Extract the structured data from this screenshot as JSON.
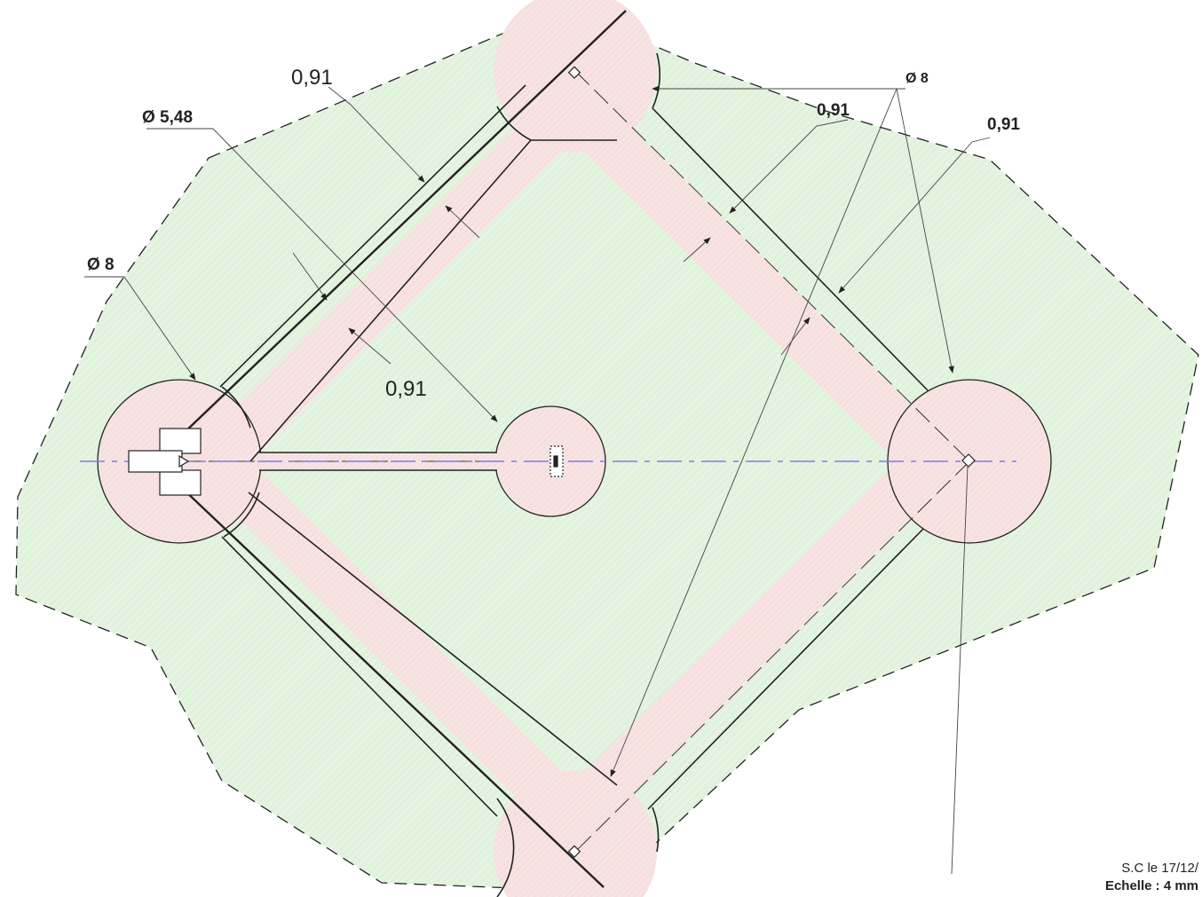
{
  "colors": {
    "turf": "#e4f4e0",
    "clay": "#f8e3e3",
    "outline": "#222222",
    "axis": "#7b7bf0"
  },
  "dimensions": {
    "foul_line_width": "0,91",
    "baseline_width_left": "0,91",
    "pitcher_mound_diameter": "Ø 5,48",
    "home_circle_diameter": "Ø 8",
    "base_circle_diameter": "Ø 8",
    "path_width_top": "0,91",
    "path_width_right": "0,91"
  },
  "title_block": {
    "author_date": "S.C le 17/12/",
    "scale": "Echelle : 4 mm"
  }
}
